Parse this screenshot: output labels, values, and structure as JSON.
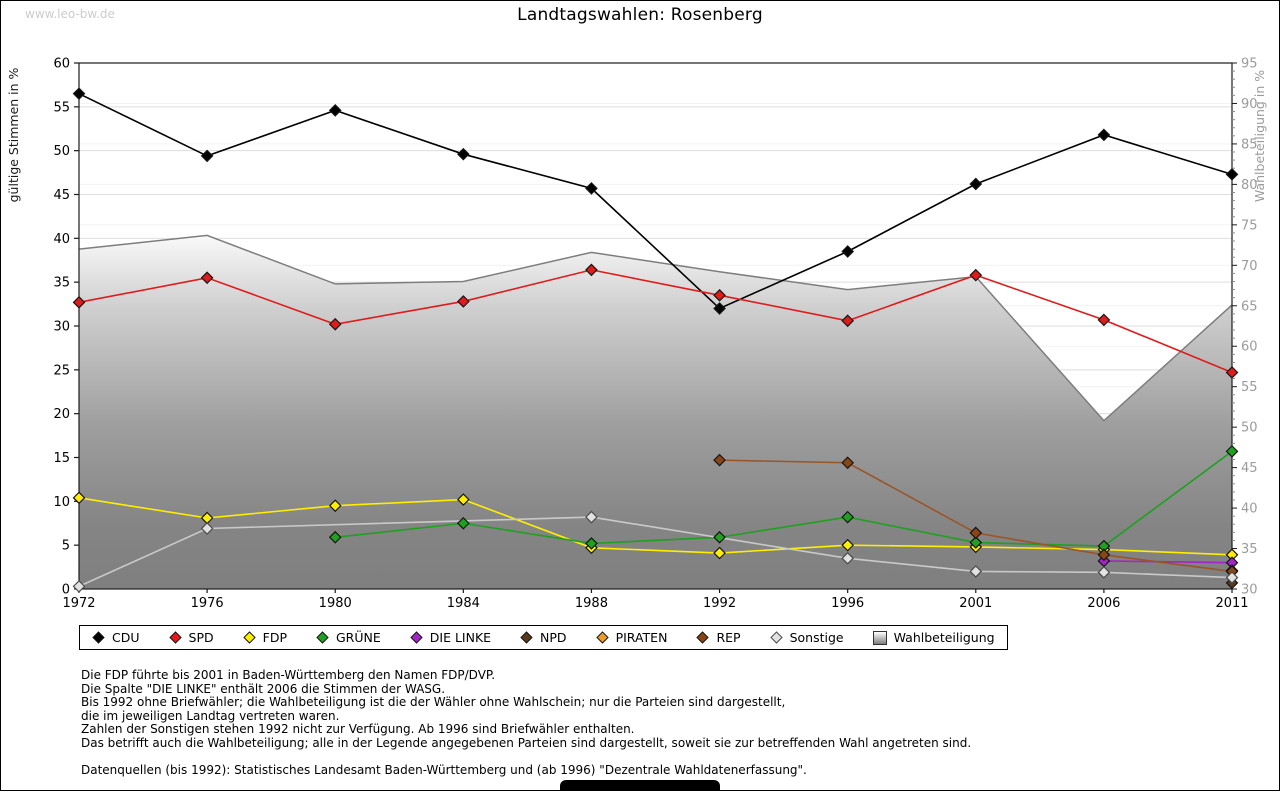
{
  "page": {
    "watermark": "www.leo-bw.de",
    "title": "Landtagswahlen: Rosenberg"
  },
  "chart_data": {
    "type": "line",
    "title": "Landtagswahlen: Rosenberg",
    "categories": [
      "1972",
      "1976",
      "1980",
      "1984",
      "1988",
      "1992",
      "1996",
      "2001",
      "2006",
      "2011"
    ],
    "y_left": {
      "label": "gültige Stimmen in %",
      "min": 0,
      "max": 60,
      "tick_step": 5
    },
    "y_right": {
      "label": "Wahlbeteiligung in %",
      "min": 30,
      "max": 95,
      "tick_step": 5,
      "minor_step": 1
    },
    "grid": true,
    "legend_position": "bottom",
    "series": [
      {
        "name": "CDU",
        "axis": "left",
        "color": "#000000",
        "values": [
          56.5,
          49.4,
          54.6,
          49.6,
          45.7,
          32.0,
          38.5,
          46.2,
          51.8,
          47.3
        ]
      },
      {
        "name": "SPD",
        "axis": "left",
        "color": "#e01b1b",
        "values": [
          32.7,
          35.5,
          30.2,
          32.8,
          36.4,
          33.5,
          30.6,
          35.8,
          30.7,
          24.7
        ]
      },
      {
        "name": "FDP",
        "axis": "left",
        "color": "#ffee00",
        "values": [
          10.4,
          8.1,
          9.5,
          10.2,
          4.7,
          4.1,
          5.0,
          4.8,
          4.5,
          3.9
        ]
      },
      {
        "name": "GRÜNE",
        "axis": "left",
        "color": "#1fa01f",
        "values": [
          null,
          null,
          5.9,
          7.5,
          5.2,
          5.9,
          8.2,
          5.3,
          4.9,
          15.7
        ]
      },
      {
        "name": "DIE LINKE",
        "axis": "left",
        "color": "#a424c8",
        "values": [
          null,
          null,
          null,
          null,
          null,
          null,
          null,
          null,
          3.2,
          3.0
        ]
      },
      {
        "name": "NPD",
        "axis": "left",
        "color": "#59391c",
        "values": [
          null,
          null,
          null,
          null,
          null,
          null,
          null,
          null,
          null,
          0.7
        ]
      },
      {
        "name": "PIRATEN",
        "axis": "left",
        "color": "#f09a1e",
        "values": [
          null,
          null,
          null,
          null,
          null,
          null,
          null,
          null,
          null,
          2.1
        ]
      },
      {
        "name": "REP",
        "axis": "left",
        "color": "#9a5526",
        "marker": "#8b4513",
        "values": [
          null,
          null,
          null,
          null,
          null,
          14.7,
          14.4,
          6.4,
          3.9,
          2.0
        ]
      },
      {
        "name": "Sonstige",
        "axis": "left",
        "color": "#c9c9c9",
        "marker": "#e2e2e2",
        "edge": "#4a4a4a",
        "values": [
          0.3,
          6.9,
          null,
          null,
          8.2,
          null,
          3.5,
          2.0,
          1.9,
          1.3
        ]
      },
      {
        "name": "Wahlbeteiligung",
        "axis": "right",
        "color": "#7d7d7d",
        "area": true,
        "values": [
          72.0,
          73.7,
          67.7,
          68.0,
          71.6,
          69.2,
          67.0,
          68.6,
          50.8,
          65.1
        ]
      }
    ]
  },
  "notes": {
    "lines": [
      "Die FDP führte bis 2001 in Baden-Württemberg den Namen FDP/DVP.",
      "Die Spalte \"DIE LINKE\" enthält 2006 die Stimmen der WASG.",
      "Bis 1992 ohne Briefwähler; die Wahlbeteiligung ist die der Wähler ohne Wahlschein; nur die Parteien sind dargestellt,",
      "die im jeweiligen Landtag vertreten waren.",
      "Zahlen der Sonstigen stehen 1992 nicht zur Verfügung. Ab 1996 sind Briefwähler enthalten.",
      "Das betrifft auch die Wahlbeteiligung; alle in der Legende angegebenen Parteien sind dargestellt, soweit sie zur betreffenden Wahl angetreten sind."
    ],
    "source": "Datenquellen (bis 1992): Statistisches Landesamt Baden-Württemberg und (ab 1996) \"Dezentrale Wahldatenerfassung\"."
  }
}
